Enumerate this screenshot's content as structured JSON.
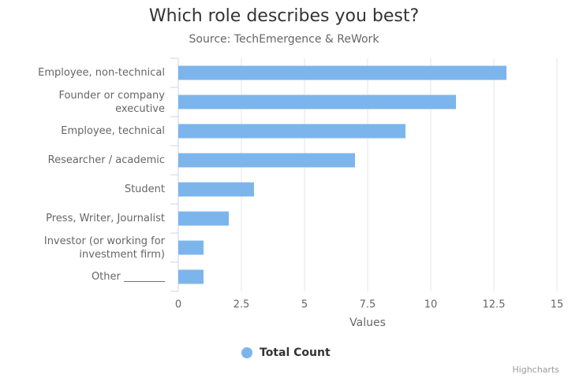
{
  "chart_data": {
    "type": "bar",
    "orientation": "horizontal",
    "title": "Which role describes you best?",
    "subtitle": "Source: TechEmergence & ReWork",
    "categories": [
      "Employee, non-technical",
      "Founder or company executive",
      "Employee, technical",
      "Researcher / academic",
      "Student",
      "Press, Writer, Journalist",
      "Investor (or working for investment firm)",
      "Other ________"
    ],
    "series": [
      {
        "name": "Total Count",
        "color": "#7cb5ec",
        "values": [
          13,
          11,
          9,
          7,
          3,
          2,
          1,
          1
        ]
      }
    ],
    "xlim": [
      0,
      15
    ],
    "xticks": [
      0,
      2.5,
      5,
      7.5,
      10,
      12.5,
      15
    ],
    "x_axis_label": "Values",
    "grid": true,
    "legend": "bottom",
    "credits": "Highcharts"
  }
}
